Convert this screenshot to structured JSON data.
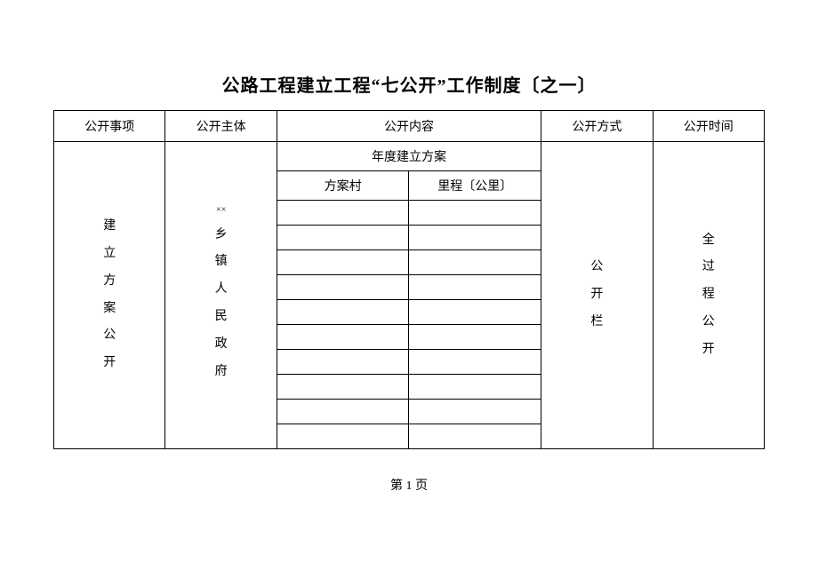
{
  "title": "公路工程建立工程“七公开”工作制度〔之一〕",
  "headers": {
    "col1": "公开事项",
    "col2": "公开主体",
    "col3_4": "公开内容",
    "col5": "公开方式",
    "col6": "公开时间"
  },
  "sub_headers": {
    "annual_plan": "年度建立方案",
    "village": "方案村",
    "mileage": "里程〔公里〕"
  },
  "column_content": {
    "matters": "建\n立\n方\n案\n公\n开",
    "subject_prefix": "××",
    "subject": "乡\n镇\n人\n民\n政\n府",
    "method": "公\n开\n栏",
    "time": "全\n过\n程\n公\n开"
  },
  "page_number": "第 1 页",
  "style": {
    "background_color": "#ffffff",
    "border_color": "#000000",
    "title_fontsize": 20,
    "cell_fontsize": 14,
    "empty_rows": 10
  }
}
